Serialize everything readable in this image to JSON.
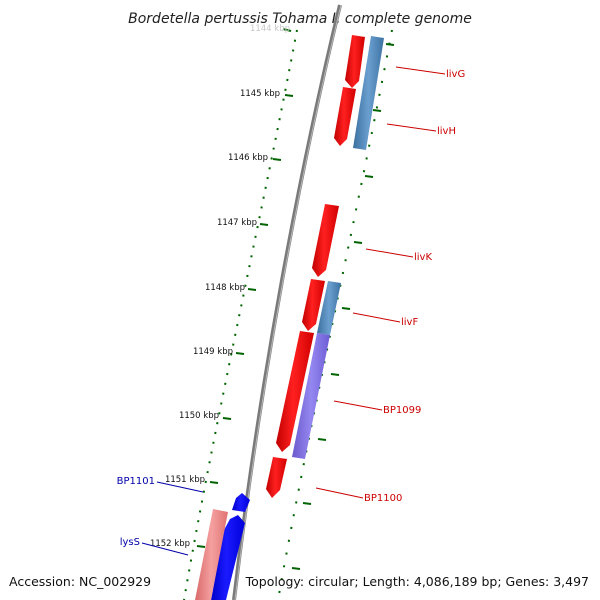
{
  "title": "Bordetella pertussis Tohama I, complete genome",
  "footer": {
    "accession": "Accession: NC_002929",
    "summary": "Topology: circular; Length: 4,086,189 bp; Genes: 3,497"
  },
  "ticks": [
    {
      "label": "1144 kbp",
      "faded": true
    },
    {
      "label": "1145 kbp",
      "faded": false
    },
    {
      "label": "1146 kbp",
      "faded": false
    },
    {
      "label": "1147 kbp",
      "faded": false
    },
    {
      "label": "1148 kbp",
      "faded": false
    },
    {
      "label": "1149 kbp",
      "faded": false
    },
    {
      "label": "1150 kbp",
      "faded": false
    },
    {
      "label": "1151 kbp",
      "faded": false
    },
    {
      "label": "1152 kbp",
      "faded": false
    }
  ],
  "genes": [
    {
      "label": "livG",
      "strand": "forward",
      "color": "#cc0000"
    },
    {
      "label": "livH",
      "strand": "forward",
      "color": "#cc0000"
    },
    {
      "label": "livK",
      "strand": "forward",
      "color": "#cc0000"
    },
    {
      "label": "livF",
      "strand": "forward",
      "color": "#cc0000"
    },
    {
      "label": "BP1099",
      "strand": "forward",
      "color": "#cc0000"
    },
    {
      "label": "BP1100",
      "strand": "forward",
      "color": "#cc0000"
    },
    {
      "label": "BP1101",
      "strand": "reverse",
      "color": "#0000aa"
    },
    {
      "label": "lysS",
      "strand": "reverse",
      "color": "#0000aa"
    }
  ],
  "colors": {
    "forward_cds": "#ff0000",
    "reverse_cds": "#0000ff",
    "forward_feature_blue": "#4682b4",
    "forward_feature_purple": "#7b68ee",
    "reverse_feature_pink": "#f08080",
    "backbone": "#808080",
    "tick_marks": "#006400"
  }
}
